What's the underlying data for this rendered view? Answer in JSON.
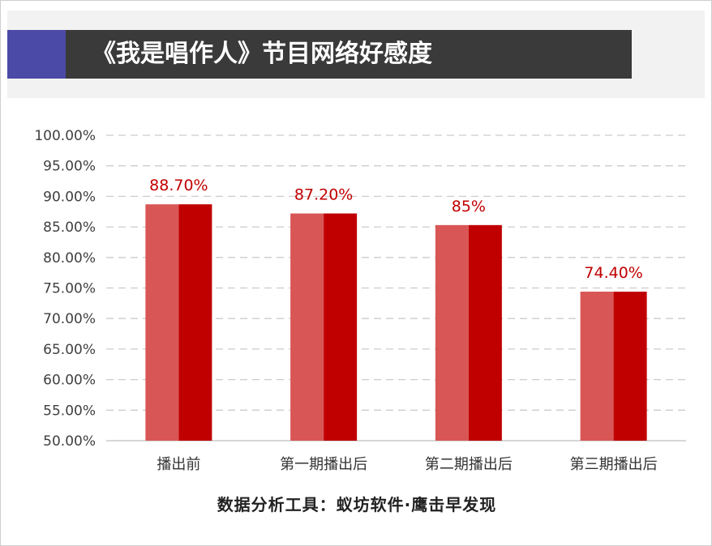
{
  "header": {
    "title": "《我是唱作人》节目网络好感度"
  },
  "footer": {
    "source": "数据分析工具：蚁坊软件·鹰击早发现"
  },
  "colors": {
    "bar_left": "#d95656",
    "bar_right": "#c00000",
    "data_label": "#c00000",
    "gridline": "#cccccc",
    "title_bar": "#3a3a3a",
    "title_accent": "#4b4aa6"
  },
  "chart_data": {
    "type": "bar",
    "categories": [
      "播出前",
      "第一期播出后",
      "第二期播出后",
      "第三期播出后"
    ],
    "values": [
      88.7,
      87.2,
      85.3,
      74.4
    ],
    "data_labels": [
      "88.70%",
      "87.20%",
      "85%",
      "74.40%"
    ],
    "yticks": [
      "50.00%",
      "55.00%",
      "60.00%",
      "65.00%",
      "70.00%",
      "75.00%",
      "80.00%",
      "85.00%",
      "90.00%",
      "95.00%",
      "100.00%"
    ],
    "ylim": [
      50,
      100
    ],
    "grid": true,
    "legend": "none"
  }
}
